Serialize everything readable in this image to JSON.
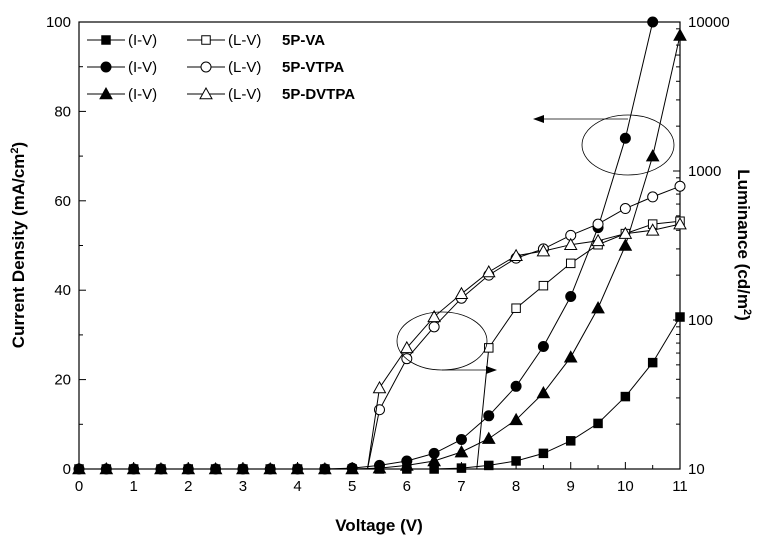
{
  "chart_data": {
    "type": "line",
    "xlabel": "Voltage (V)",
    "ylabel": "Current Density (mA/cm",
    "ylabel_sup": "2",
    "ylabel_end": ")",
    "y2label": "Luminance (cd/m",
    "y2label_sup": "2",
    "y2label_end": ")",
    "xlim": [
      0,
      11
    ],
    "ylim": [
      0,
      100
    ],
    "y2lim": [
      10,
      10000
    ],
    "y2scale": "log",
    "xticks": [
      0,
      0.5,
      1,
      1.5,
      2,
      2.5,
      3,
      3.5,
      4,
      4.5,
      5,
      5.5,
      6,
      6.5,
      7,
      7.5,
      8,
      8.5,
      9,
      9.5,
      10,
      10.5,
      11
    ],
    "xtick_labels": [
      "0",
      "1",
      "2",
      "3",
      "4",
      "5",
      "6",
      "7",
      "8",
      "9",
      "10",
      "11"
    ],
    "yticks": [
      "0",
      "20",
      "40",
      "60",
      "80",
      "100"
    ],
    "y2ticks": [
      "10",
      "100",
      "1000",
      "10000"
    ],
    "legend": {
      "placement": "top-left",
      "iv_label": "(I-V)",
      "lv_label": "(L-V)",
      "samples": [
        "5P-VA",
        "5P-VTPA",
        "5P-DVTPA"
      ]
    },
    "series": [
      {
        "sample": "5P-VA",
        "kind": "I-V",
        "axis": "left",
        "marker": "square",
        "filled": true,
        "x": [
          0,
          0.5,
          1,
          1.5,
          2,
          2.5,
          3,
          3.5,
          4,
          4.5,
          5,
          5.5,
          6,
          6.5,
          7,
          7.5,
          8,
          8.5,
          9,
          9.5,
          10,
          10.5,
          11
        ],
        "y": [
          0,
          0,
          0,
          0,
          0,
          0,
          0,
          0,
          0,
          0,
          0,
          0,
          0,
          0,
          0.2,
          0.8,
          1.8,
          3.5,
          6.3,
          10.2,
          16.2,
          23.8,
          34
        ]
      },
      {
        "sample": "5P-VTPA",
        "kind": "I-V",
        "axis": "left",
        "marker": "circle",
        "filled": true,
        "x": [
          0,
          0.5,
          1,
          1.5,
          2,
          2.5,
          3,
          3.5,
          4,
          4.5,
          5,
          5.5,
          6,
          6.5,
          7,
          7.5,
          8,
          8.5,
          9,
          9.5,
          10,
          10.5
        ],
        "y": [
          0,
          0,
          0,
          0,
          0,
          0,
          0,
          0,
          0,
          0,
          0.2,
          0.8,
          1.8,
          3.5,
          6.6,
          11.9,
          18.5,
          27.4,
          38.6,
          54,
          74,
          100
        ]
      },
      {
        "sample": "5P-DVTPA",
        "kind": "I-V",
        "axis": "left",
        "marker": "triangle",
        "filled": true,
        "x": [
          0,
          0.5,
          1,
          1.5,
          2,
          2.5,
          3,
          3.5,
          4,
          4.5,
          5,
          5.5,
          6,
          6.5,
          7,
          7.5,
          8,
          8.5,
          9,
          9.5,
          10,
          10.5,
          11
        ],
        "y": [
          0,
          0,
          0,
          0,
          0,
          0,
          0,
          0,
          0,
          0,
          0,
          0.2,
          0.8,
          1.8,
          3.8,
          6.8,
          11,
          17,
          25,
          36,
          50,
          70,
          97
        ]
      },
      {
        "sample": "5P-VA",
        "kind": "L-V",
        "axis": "right",
        "marker": "square",
        "filled": false,
        "x": [
          7.5,
          8,
          8.5,
          9,
          9.5,
          10,
          10.5,
          11
        ],
        "y": [
          65,
          120,
          170,
          240,
          320,
          380,
          440,
          460
        ]
      },
      {
        "sample": "5P-VTPA",
        "kind": "L-V",
        "axis": "right",
        "marker": "circle",
        "filled": false,
        "x": [
          5.5,
          6,
          6.5,
          7,
          7.5,
          8,
          8.5,
          9,
          9.5,
          10,
          10.5,
          11
        ],
        "y": [
          25,
          55,
          90,
          140,
          200,
          260,
          300,
          370,
          440,
          560,
          670,
          790
        ]
      },
      {
        "sample": "5P-DVTPA",
        "kind": "L-V",
        "axis": "right",
        "marker": "triangle",
        "filled": false,
        "x": [
          5.5,
          6,
          6.5,
          7,
          7.5,
          8,
          8.5,
          9,
          9.5,
          10,
          10.5,
          11
        ],
        "y": [
          35,
          65,
          105,
          150,
          210,
          270,
          290,
          320,
          340,
          380,
          400,
          440
        ]
      }
    ],
    "annotations": [
      "ellipse around I-V curves near 10 V with arrow pointing left to the current density axis",
      "ellipse around L-V curves near 6.5 V with arrow pointing right to the luminance axis"
    ]
  }
}
